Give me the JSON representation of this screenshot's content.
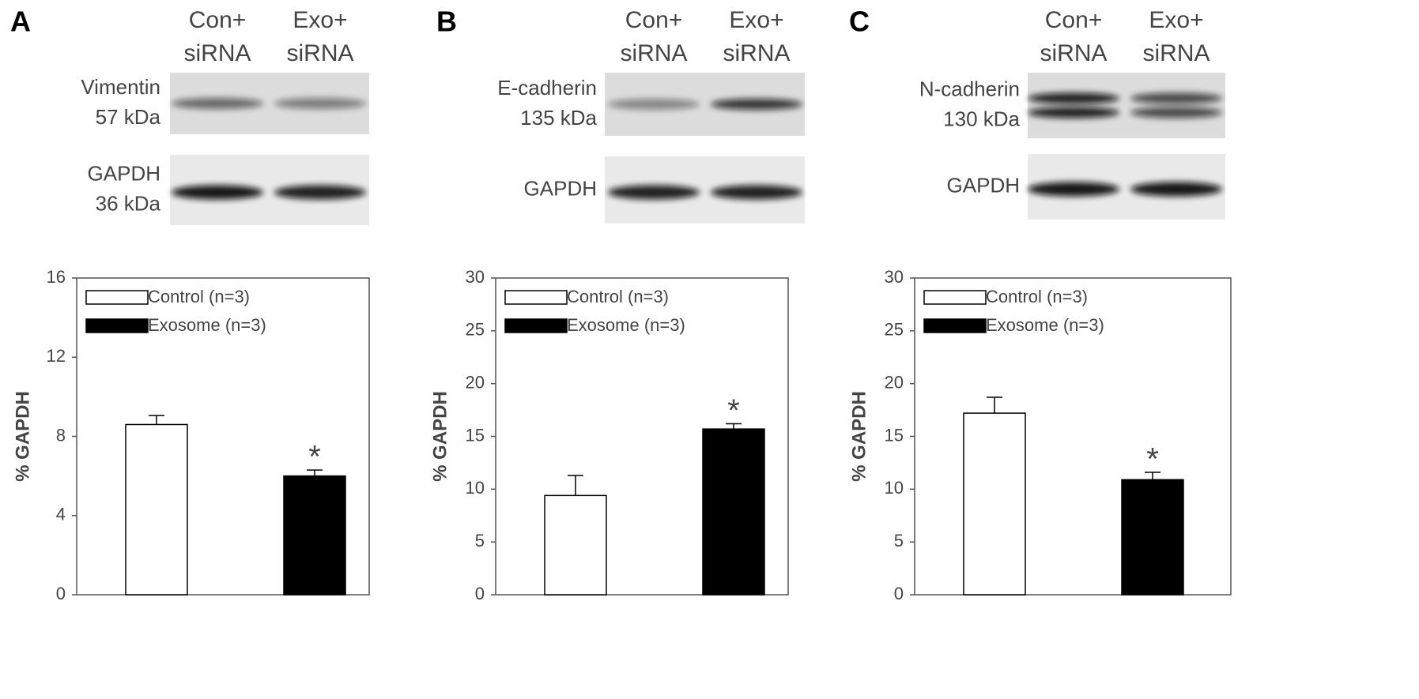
{
  "chart_data": [
    {
      "type": "bar",
      "panel": "A",
      "lanes": [
        [
          "Con+",
          "siRNA"
        ],
        [
          "Exo+",
          "siRNA"
        ]
      ],
      "blots": [
        {
          "label": [
            "Vimentin",
            "57 kDa"
          ]
        },
        {
          "label": [
            "GAPDH",
            "36 kDa"
          ]
        }
      ],
      "ylabel": "% GAPDH",
      "ylim": [
        0,
        16
      ],
      "yticks": [
        0,
        4,
        8,
        12,
        16
      ],
      "series": [
        {
          "name": "Control (n=3)",
          "color": "#ffffff",
          "values": [
            8.6
          ],
          "errors": [
            0.45
          ]
        },
        {
          "name": "Exosome (n=3)",
          "color": "#000000",
          "values": [
            6.0
          ],
          "errors": [
            0.3
          ]
        }
      ],
      "annotation": "*"
    },
    {
      "type": "bar",
      "panel": "B",
      "lanes": [
        [
          "Con+",
          "siRNA"
        ],
        [
          "Exo+",
          "siRNA"
        ]
      ],
      "blots": [
        {
          "label": [
            "E-cadherin",
            "135 kDa"
          ]
        },
        {
          "label": [
            "GAPDH"
          ]
        }
      ],
      "ylabel": "% GAPDH",
      "ylim": [
        0,
        30
      ],
      "yticks": [
        0,
        5,
        10,
        15,
        20,
        25,
        30
      ],
      "series": [
        {
          "name": "Control (n=3)",
          "color": "#ffffff",
          "values": [
            9.4
          ],
          "errors": [
            1.9
          ]
        },
        {
          "name": "Exosome (n=3)",
          "color": "#000000",
          "values": [
            15.7
          ],
          "errors": [
            0.5
          ]
        }
      ],
      "annotation": "*"
    },
    {
      "type": "bar",
      "panel": "C",
      "lanes": [
        [
          "Con+",
          "siRNA"
        ],
        [
          "Exo+",
          "siRNA"
        ]
      ],
      "blots": [
        {
          "label": [
            "N-cadherin",
            "130 kDa"
          ]
        },
        {
          "label": [
            "GAPDH"
          ]
        }
      ],
      "ylabel": "% GAPDH",
      "ylim": [
        0,
        30
      ],
      "yticks": [
        0,
        5,
        10,
        15,
        20,
        25,
        30
      ],
      "series": [
        {
          "name": "Control (n=3)",
          "color": "#ffffff",
          "values": [
            17.2
          ],
          "errors": [
            1.5
          ]
        },
        {
          "name": "Exosome (n=3)",
          "color": "#000000",
          "values": [
            10.9
          ],
          "errors": [
            0.7
          ]
        }
      ],
      "annotation": "*"
    }
  ]
}
